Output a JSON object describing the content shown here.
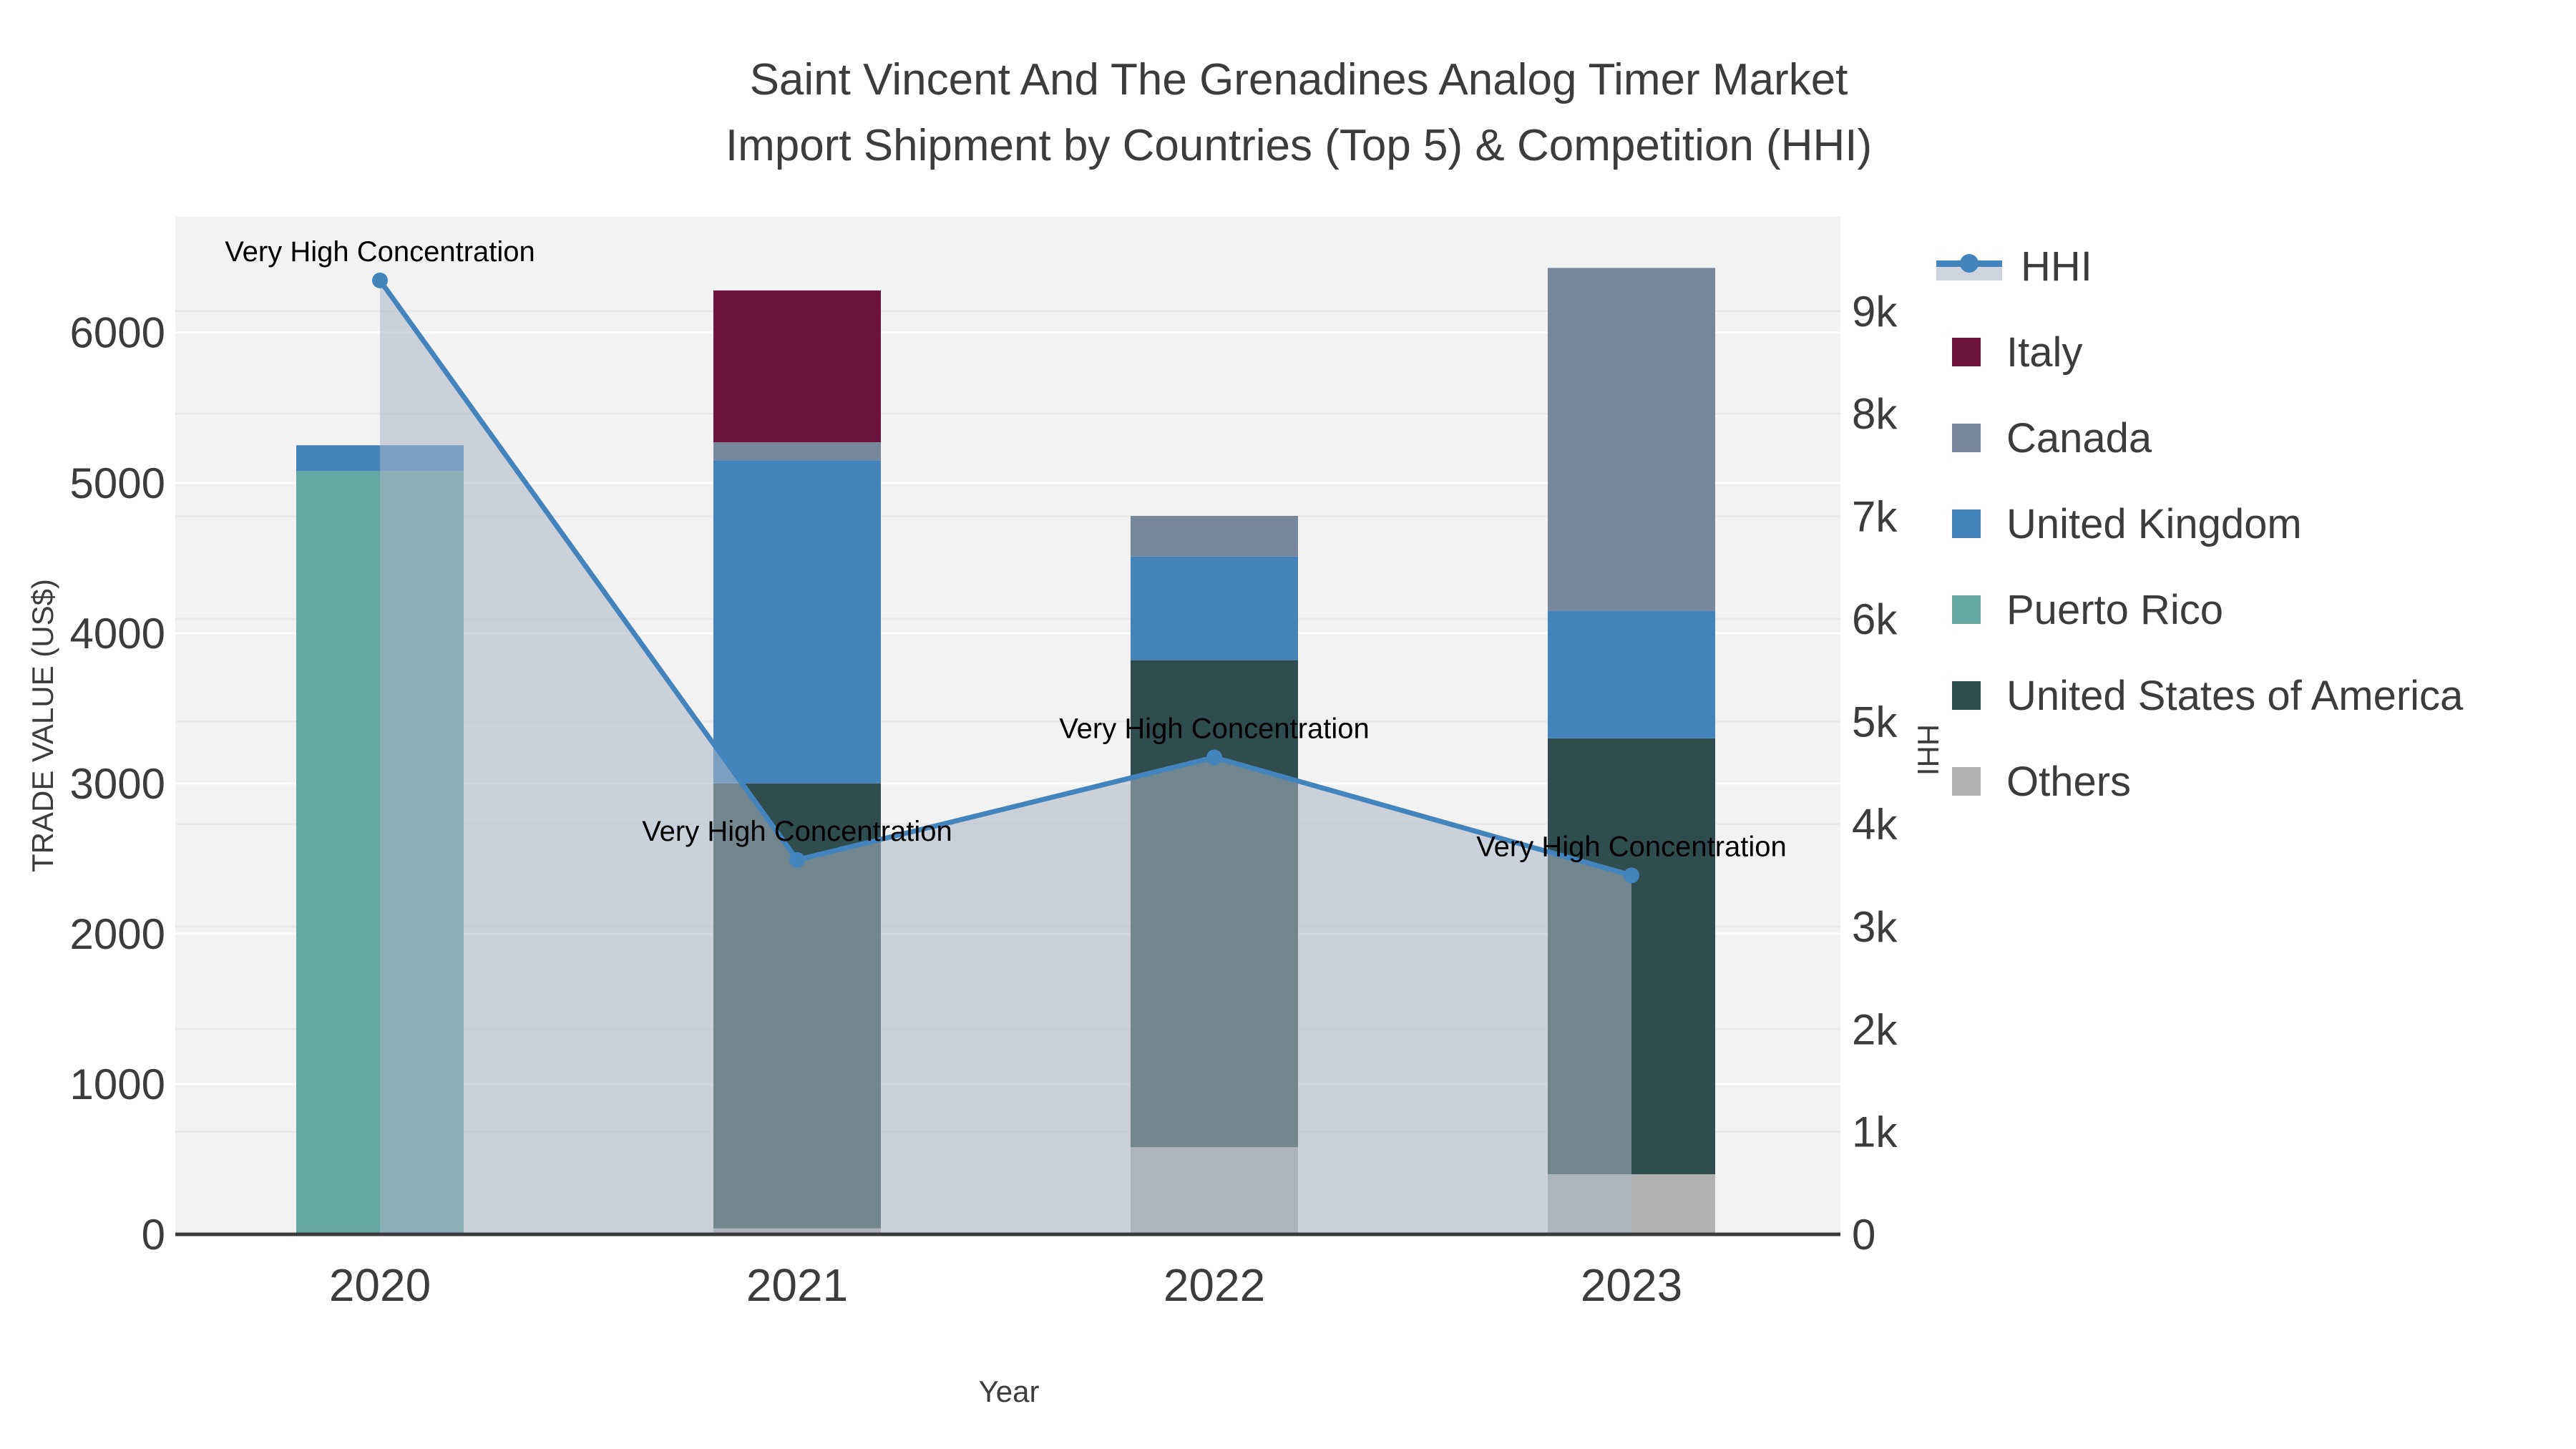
{
  "title": {
    "line1": "Saint Vincent And The Grenadines Analog Timer Market",
    "line2": "Import Shipment by Countries (Top 5) & Competition (HHI)"
  },
  "axes": {
    "y_left_label": "TRADE VALUE (US$)",
    "y_right_label": "HHI",
    "x_label": "Year"
  },
  "legend": {
    "items": [
      {
        "label": "HHI",
        "type": "line",
        "color": "#4484BC",
        "band_color": "#CDD4DF"
      },
      {
        "label": "Italy",
        "type": "patch",
        "color": "#6C143E"
      },
      {
        "label": "Canada",
        "type": "patch",
        "color": "#76879B"
      },
      {
        "label": "United Kingdom",
        "type": "patch",
        "color": "#4484BA"
      },
      {
        "label": "Puerto Rico",
        "type": "patch",
        "color": "#64A7A3"
      },
      {
        "label": "United States of America",
        "type": "patch",
        "color": "#2F4C4E"
      },
      {
        "label": "Others",
        "type": "patch",
        "color": "#B2B2B2"
      }
    ]
  },
  "chart_data": {
    "type": "composite-stacked-bar-and-line",
    "title": "Saint Vincent And The Grenadines Analog Timer Market Import Shipment by Countries (Top 5) & Competition (HHI)",
    "categories": [
      "2020",
      "2021",
      "2022",
      "2023"
    ],
    "series": [
      {
        "name": "Italy",
        "values": [
          0,
          1010,
          0,
          0
        ],
        "color": "#6C143E"
      },
      {
        "name": "Canada",
        "values": [
          0,
          120,
          270,
          2280
        ],
        "color": "#76879B"
      },
      {
        "name": "United Kingdom",
        "values": [
          170,
          2150,
          690,
          850
        ],
        "color": "#4484BA"
      },
      {
        "name": "Puerto Rico",
        "values": [
          5080,
          0,
          0,
          0
        ],
        "color": "#64A7A3"
      },
      {
        "name": "United States of America",
        "values": [
          0,
          2960,
          3240,
          2900
        ],
        "color": "#2F4C4E"
      },
      {
        "name": "Others",
        "values": [
          0,
          40,
          580,
          400
        ],
        "color": "#B2B2B2"
      }
    ],
    "stack_order_bottom_to_top": [
      "Others",
      "United States of America",
      "Puerto Rico",
      "United Kingdom",
      "Canada",
      "Italy"
    ],
    "bar_totals": [
      5250,
      6280,
      4780,
      6430
    ],
    "line_series": {
      "name": "HHI",
      "values": [
        9300,
        3650,
        4650,
        3500
      ],
      "color": "#4484BC",
      "area_color": "#A9B6C6",
      "annotation": "Very High Concentration"
    },
    "y_left": {
      "label": "TRADE VALUE (US$)",
      "ticks": [
        "0",
        "1000",
        "2000",
        "3000",
        "4000",
        "5000",
        "6000"
      ],
      "tick_values": [
        0,
        1000,
        2000,
        3000,
        4000,
        5000,
        6000
      ],
      "max": 6770
    },
    "y_right": {
      "label": "HHI",
      "ticks": [
        "0",
        "1k",
        "2k",
        "3k",
        "4k",
        "5k",
        "6k",
        "7k",
        "8k",
        "9k"
      ],
      "tick_values": [
        0,
        1000,
        2000,
        3000,
        4000,
        5000,
        6000,
        7000,
        8000,
        9000
      ],
      "max": 9920
    },
    "xlabel": "Year",
    "grid": true,
    "legend_position": "right",
    "plot_background": "#F2F2F2",
    "grid_color_major": "#FFFFFF",
    "grid_color_secondary": "#E8E8E8",
    "axis_line_color": "#3A3A3A",
    "tick_label_color": "#3C3C3C",
    "annotation_color": "#000000"
  }
}
